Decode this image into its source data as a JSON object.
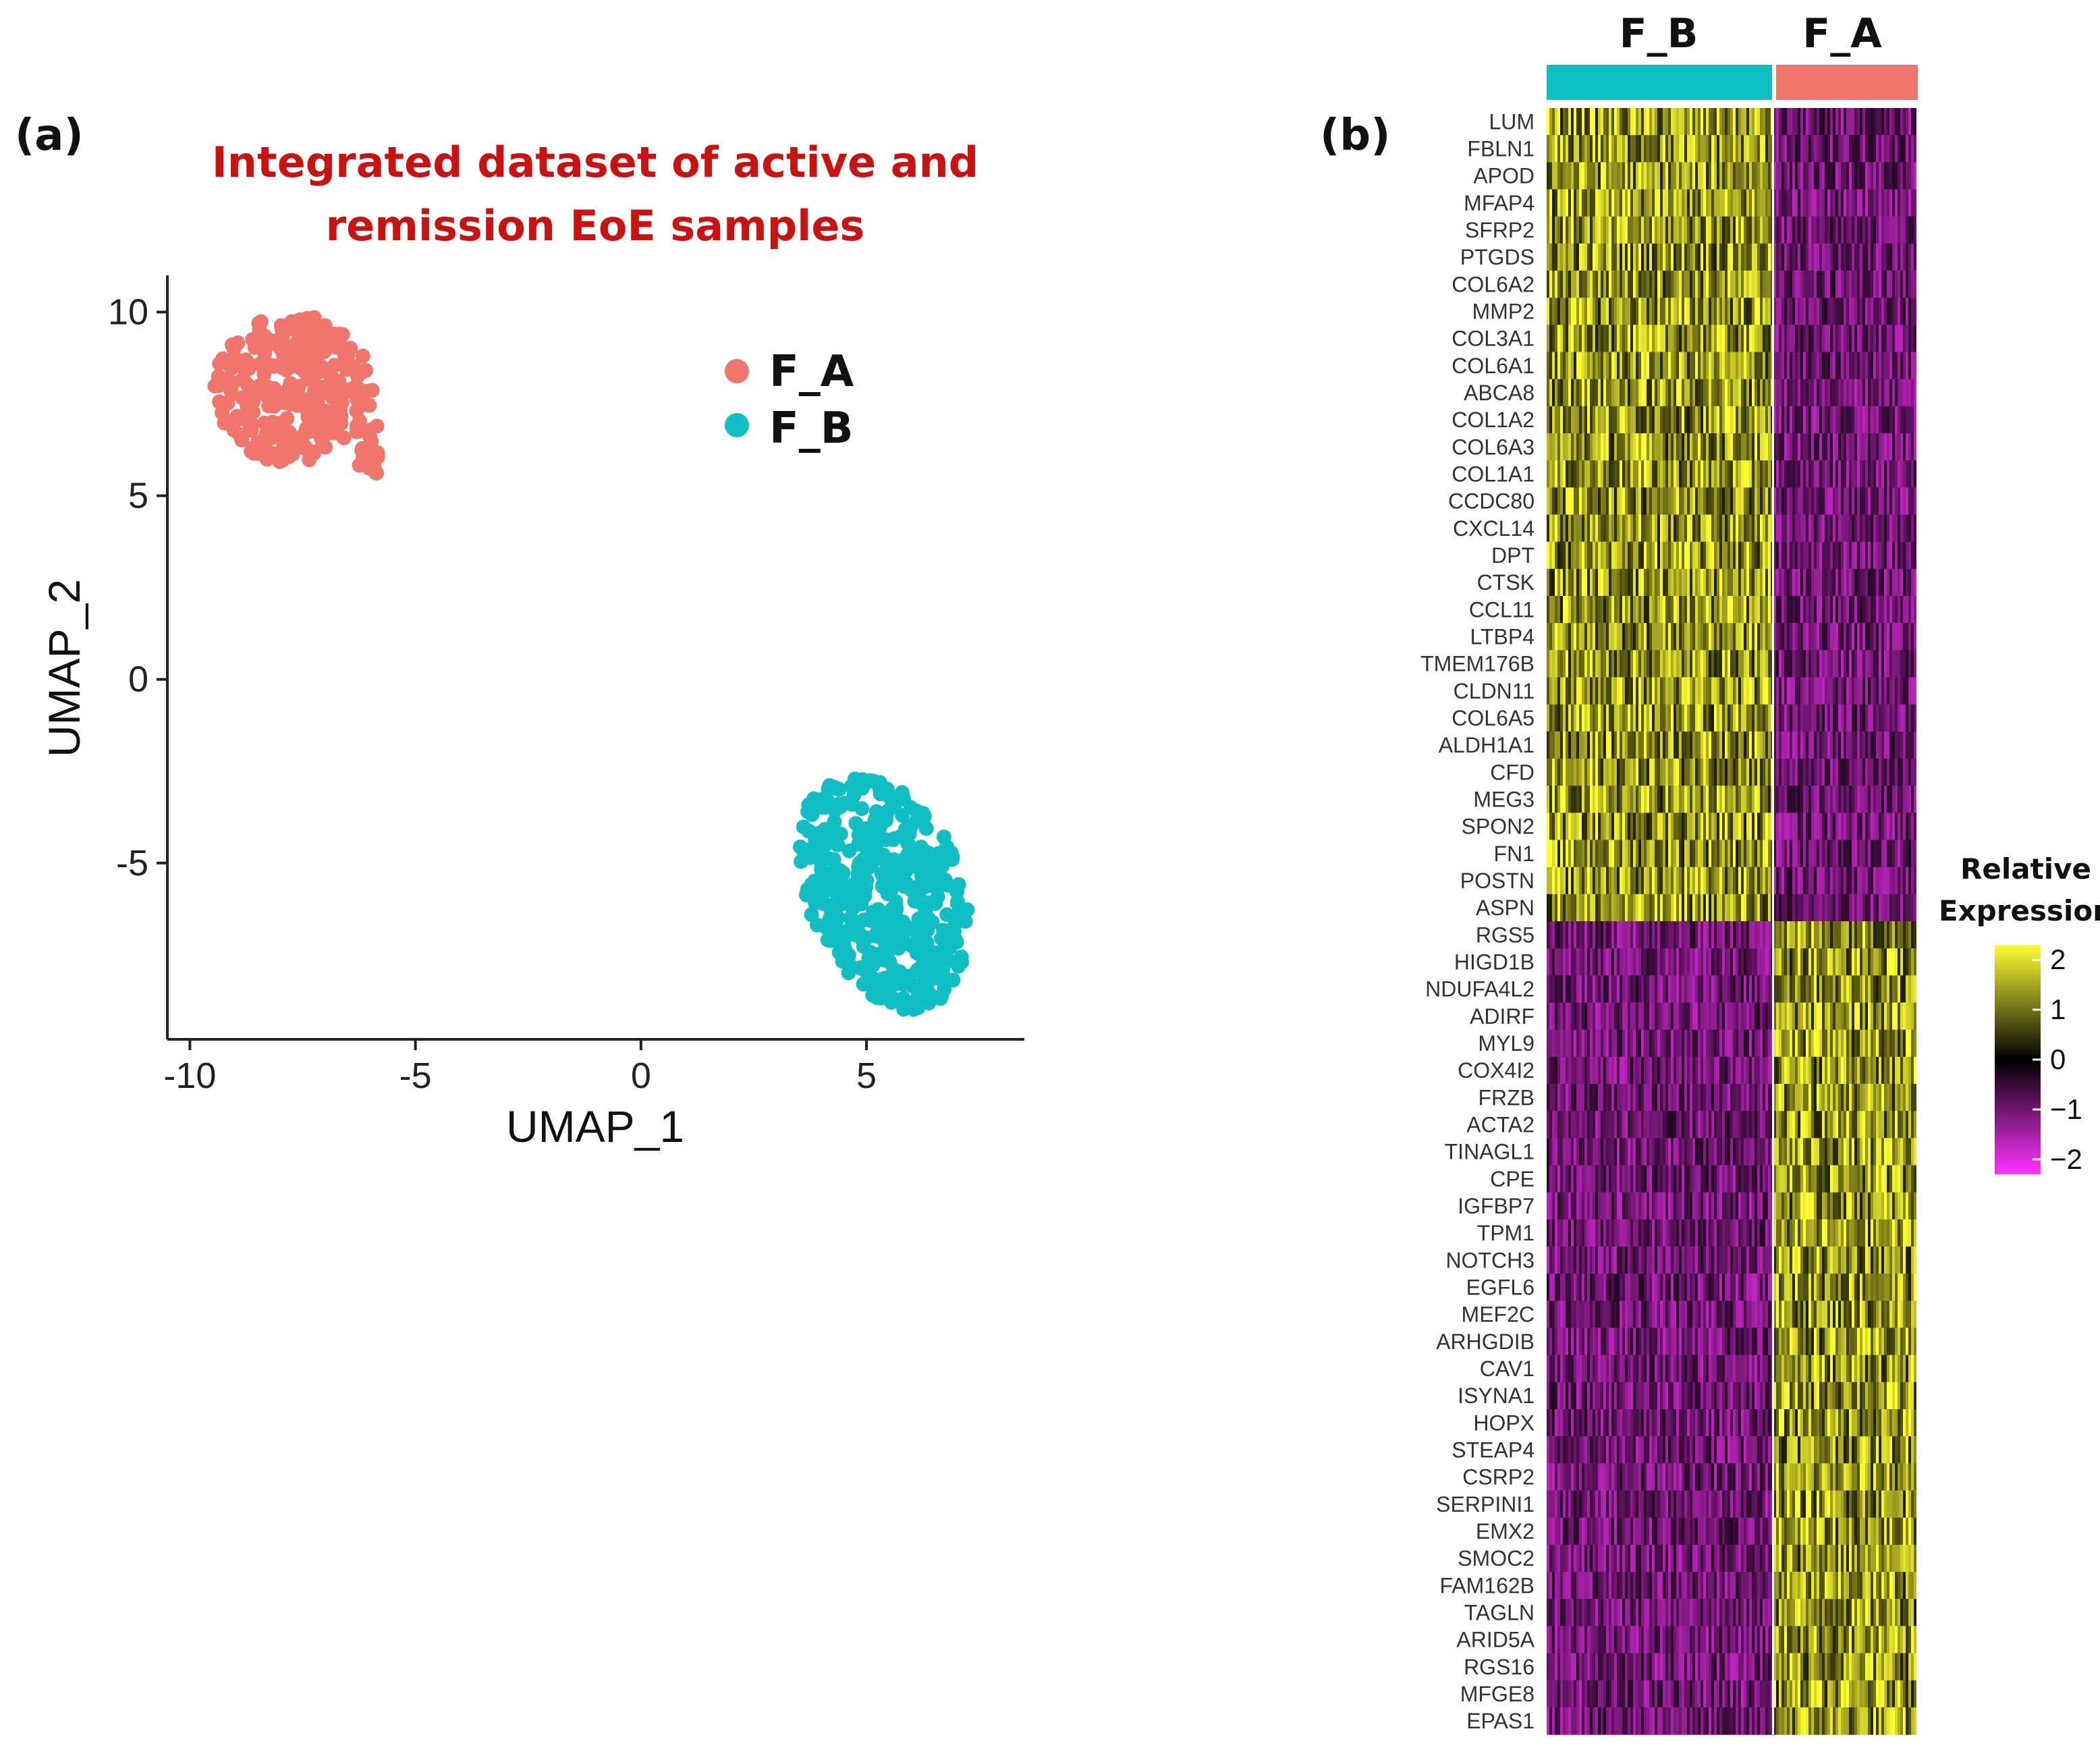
{
  "panel_a_label": "(a)",
  "panel_b_label": "(b)",
  "chart_data": [
    {
      "type": "scatter",
      "title_lines": [
        "Integrated dataset of active and",
        "remission EoE samples"
      ],
      "xlabel": "UMAP_1",
      "ylabel": "UMAP_2",
      "xlim": [
        -10.5,
        8.5
      ],
      "ylim": [
        -9.8,
        11
      ],
      "xticks": [
        -10,
        -5,
        0,
        5
      ],
      "xtick_labels": [
        "-10",
        "-5",
        "0",
        "5"
      ],
      "yticks": [
        10,
        5,
        0,
        -5
      ],
      "ytick_labels": [
        "10",
        "5",
        "0",
        "-5"
      ],
      "legend_position": "top-right",
      "series": [
        {
          "name": "F_A",
          "color": "#f0766d",
          "n_points": 320,
          "cluster_center": [
            -7.7,
            7.9
          ],
          "x_range": [
            -9.6,
            -5.9
          ],
          "y_range": [
            5.5,
            10
          ]
        },
        {
          "name": "F_B",
          "color": "#10bfc4",
          "n_points": 430,
          "cluster_center": [
            5.2,
            -6
          ],
          "x_range": [
            2.8,
            7.6
          ],
          "y_range": [
            -9,
            -2.7
          ]
        }
      ]
    },
    {
      "type": "heatmap",
      "groups": [
        {
          "name": "F_B",
          "color": "#10bfc4"
        },
        {
          "name": "F_A",
          "color": "#f0766d"
        }
      ],
      "group_column_fraction": [
        0.61,
        0.39
      ],
      "genes_up_in_F_B": [
        "LUM",
        "FBLN1",
        "APOD",
        "MFAP4",
        "SFRP2",
        "PTGDS",
        "COL6A2",
        "MMP2",
        "COL3A1",
        "COL6A1",
        "ABCA8",
        "COL1A2",
        "COL6A3",
        "COL1A1",
        "CCDC80",
        "CXCL14",
        "DPT",
        "CTSK",
        "CCL11",
        "LTBP4",
        "TMEM176B",
        "CLDN11",
        "COL6A5",
        "ALDH1A1",
        "CFD",
        "MEG3",
        "SPON2",
        "FN1",
        "POSTN",
        "ASPN"
      ],
      "genes_up_in_F_A": [
        "RGS5",
        "HIGD1B",
        "NDUFA4L2",
        "ADIRF",
        "MYL9",
        "COX4I2",
        "FRZB",
        "ACTA2",
        "TINAGL1",
        "CPE",
        "IGFBP7",
        "TPM1",
        "NOTCH3",
        "EGFL6",
        "MEF2C",
        "ARHGDIB",
        "CAV1",
        "ISYNA1",
        "HOPX",
        "STEAP4",
        "CSRP2",
        "SERPINI1",
        "EMX2",
        "SMOC2",
        "FAM162B",
        "TAGLN",
        "ARID5A",
        "RGS16",
        "MFGE8",
        "EPAS1"
      ],
      "colorbar": {
        "title_lines": [
          "Relative",
          "Expression"
        ],
        "range": [
          -2.3,
          2.3
        ],
        "ticks": [
          2,
          1,
          0,
          -1,
          -2
        ],
        "tick_labels": [
          "2",
          "1",
          "0",
          "−1",
          "−2"
        ],
        "colors": {
          "high": "#ffff33",
          "mid": "#000000",
          "low": "#ff33ff"
        }
      }
    }
  ]
}
